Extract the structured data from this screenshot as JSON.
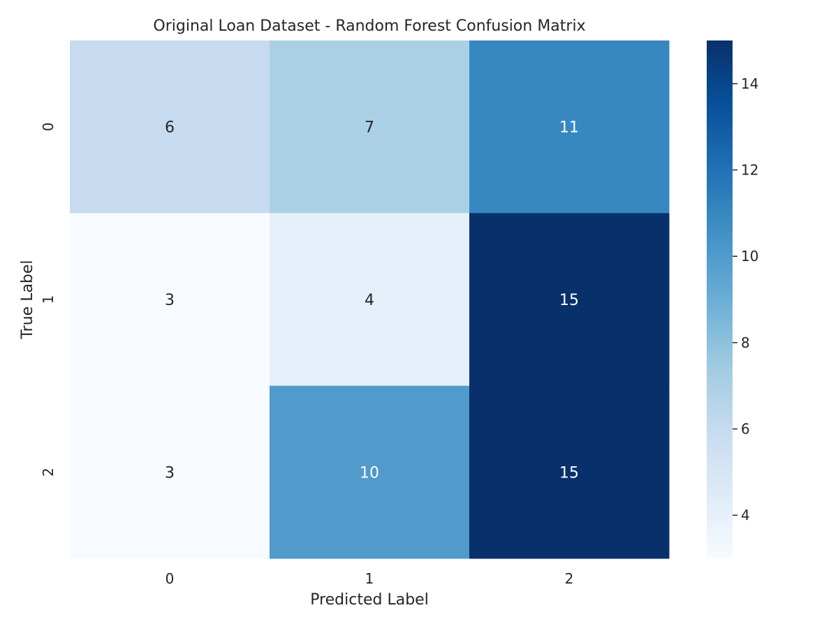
{
  "chart_data": {
    "type": "heatmap",
    "title": "Original Loan Dataset - Random Forest Confusion Matrix",
    "xlabel": "Predicted Label",
    "ylabel": "True Label",
    "x_categories": [
      "0",
      "1",
      "2"
    ],
    "y_categories": [
      "0",
      "1",
      "2"
    ],
    "values": [
      [
        6,
        7,
        11
      ],
      [
        3,
        4,
        15
      ],
      [
        3,
        10,
        15
      ]
    ],
    "colorbar": {
      "min": 3,
      "max": 15,
      "ticks": [
        4,
        6,
        8,
        10,
        12,
        14
      ]
    },
    "colormap": "Blues",
    "colors": {
      "low": "#f7fbff",
      "high": "#08306b",
      "text_dark": "#262626",
      "text_light": "#ffffff"
    },
    "grid": false,
    "legend": "colorbar-right"
  }
}
